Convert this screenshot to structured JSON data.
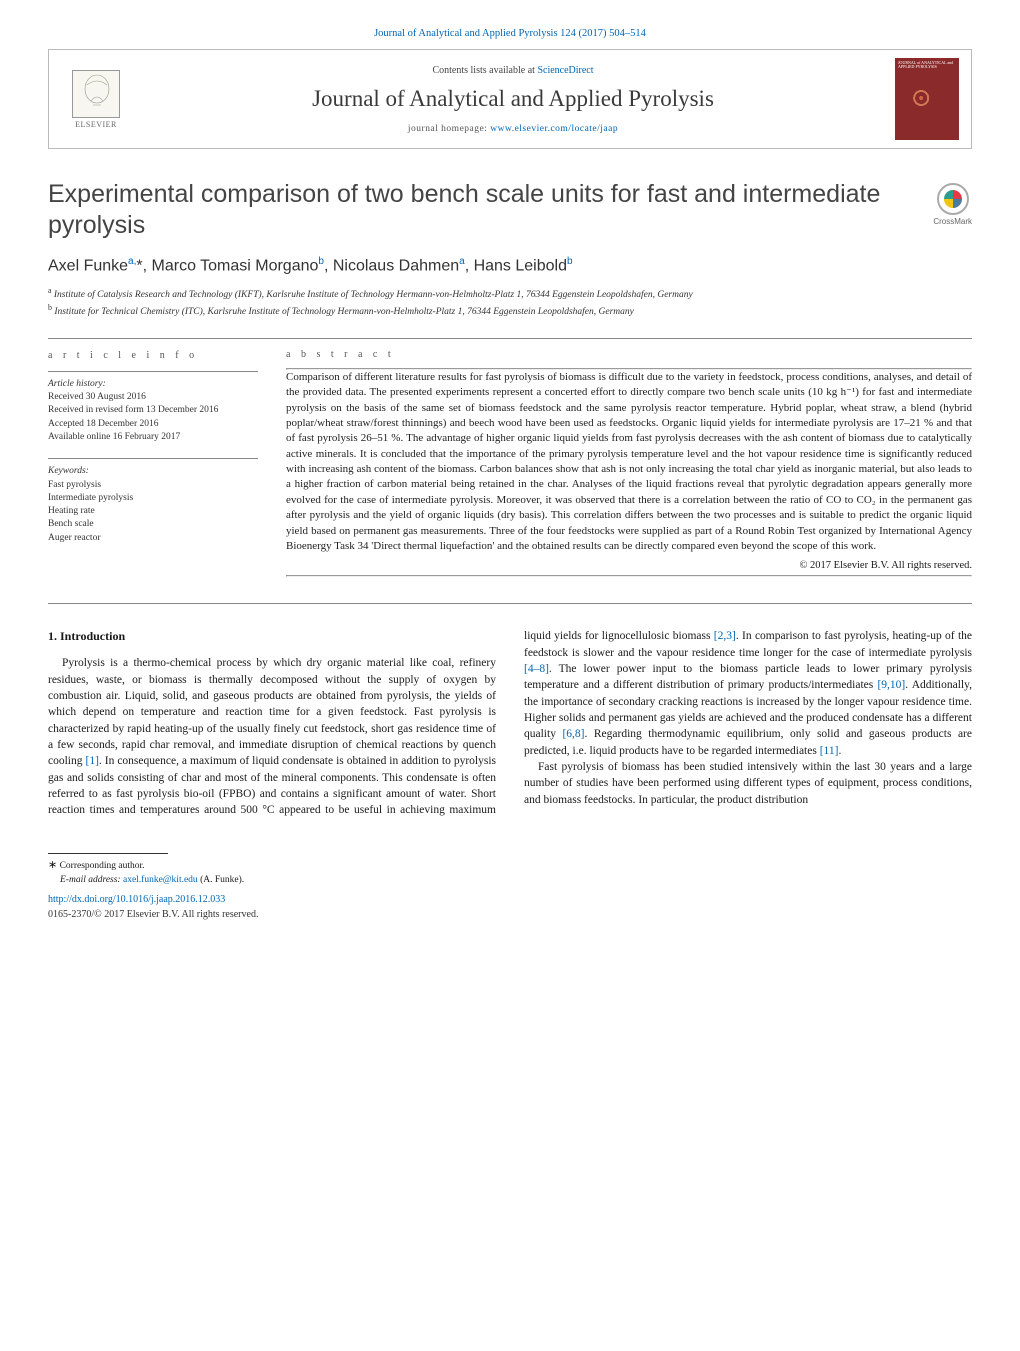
{
  "top_citation": "Journal of Analytical and Applied Pyrolysis 124 (2017) 504–514",
  "header": {
    "publisher_name": "ELSEVIER",
    "contents_prefix": "Contents lists available at ",
    "contents_link": "ScienceDirect",
    "journal_name": "Journal of Analytical and Applied Pyrolysis",
    "homepage_prefix": "journal homepage: ",
    "homepage_url": "www.elsevier.com/locate/jaap",
    "cover_label": "JOURNAL of ANALYTICAL and APPLIED PYROLYSIS"
  },
  "article": {
    "title": "Experimental comparison of two bench scale units for fast and intermediate pyrolysis",
    "crossmark_label": "CrossMark",
    "authors_html": "Axel Funke<sup>a,</sup>*, Marco Tomasi Morgano<sup>b</sup>, Nicolaus Dahmen<sup>a</sup>, Hans Leibold<sup>b</sup>",
    "affiliations": {
      "a": "Institute of Catalysis Research and Technology (IKFT), Karlsruhe Institute of Technology Hermann-von-Helmholtz-Platz 1, 76344 Eggenstein Leopoldshafen, Germany",
      "b": "Institute for Technical Chemistry (ITC), Karlsruhe Institute of Technology Hermann-von-Helmholtz-Platz 1, 76344 Eggenstein Leopoldshafen, Germany"
    }
  },
  "info": {
    "section_label": "a r t i c l e   i n f o",
    "history_label": "Article history:",
    "received": "Received 30 August 2016",
    "revised": "Received in revised form 13 December 2016",
    "accepted": "Accepted 18 December 2016",
    "online": "Available online 16 February 2017",
    "keywords_label": "Keywords:",
    "keywords": [
      "Fast pyrolysis",
      "Intermediate pyrolysis",
      "Heating rate",
      "Bench scale",
      "Auger reactor"
    ]
  },
  "abstract": {
    "section_label": "a b s t r a c t",
    "text": "Comparison of different literature results for fast pyrolysis of biomass is difficult due to the variety in feedstock, process conditions, analyses, and detail of the provided data. The presented experiments represent a concerted effort to directly compare two bench scale units (10 kg h⁻¹) for fast and intermediate pyrolysis on the basis of the same set of biomass feedstock and the same pyrolysis reactor temperature. Hybrid poplar, wheat straw, a blend (hybrid poplar/wheat straw/forest thinnings) and beech wood have been used as feedstocks. Organic liquid yields for intermediate pyrolysis are 17–21 % and that of fast pyrolysis 26–51 %. The advantage of higher organic liquid yields from fast pyrolysis decreases with the ash content of biomass due to catalytically active minerals. It is concluded that the importance of the primary pyrolysis temperature level and the hot vapour residence time is significantly reduced with increasing ash content of the biomass. Carbon balances show that ash is not only increasing the total char yield as inorganic material, but also leads to a higher fraction of carbon material being retained in the char. Analyses of the liquid fractions reveal that pyrolytic degradation appears generally more evolved for the case of intermediate pyrolysis. Moreover, it was observed that there is a correlation between the ratio of CO to CO₂ in the permanent gas after pyrolysis and the yield of organic liquids (dry basis). This correlation differs between the two processes and is suitable to predict the organic liquid yield based on permanent gas measurements. Three of the four feedstocks were supplied as part of a Round Robin Test organized by International Agency Bioenergy Task 34 'Direct thermal liquefaction' and the obtained results can be directly compared even beyond the scope of this work.",
    "copyright": "© 2017 Elsevier B.V. All rights reserved."
  },
  "body": {
    "heading": "1.  Introduction",
    "p1": "Pyrolysis is a thermo-chemical process by which dry organic material like coal, refinery residues, waste, or biomass is thermally decomposed without the supply of oxygen by combustion air. Liquid, solid, and gaseous products are obtained from pyrolysis, the yields of which depend on temperature and reaction time for a given feedstock. Fast pyrolysis is characterized by rapid heating-up of the usually finely cut feedstock, short gas residence time of a few seconds, rapid char removal, and immediate disruption of chemical reactions by quench cooling ",
    "r1": "[1]",
    "p1b": ". In consequence, a maximum of liquid condensate is obtained in addition to pyrolysis gas and solids consisting of char and most of the mineral components. This condensate is often referred to as fast pyrolysis bio-oil (FPBO)",
    "p2a": "and contains a significant amount of water. Short reaction times and temperatures around 500 °C appeared to be useful in achieving maximum liquid yields for lignocellulosic biomass ",
    "r2": "[2,3]",
    "p2b": ". In comparison to fast pyrolysis, heating-up of the feedstock is slower and the vapour residence time longer for the case of intermediate pyrolysis ",
    "r3": "[4–8]",
    "p2c": ". The lower power input to the biomass particle leads to lower primary pyrolysis temperature and a different distribution of primary products/intermediates ",
    "r4": "[9,10]",
    "p2d": ". Additionally, the importance of secondary cracking reactions is increased by the longer vapour residence time. Higher solids and permanent gas yields are achieved and the produced condensate has a different quality ",
    "r5": "[6,8]",
    "p2e": ". Regarding thermodynamic equilibrium, only solid and gaseous products are predicted, i.e. liquid products have to be regarded intermediates ",
    "r6": "[11]",
    "p2f": ".",
    "p3": "Fast pyrolysis of biomass has been studied intensively within the last 30 years and a large number of studies have been performed using different types of equipment, process conditions, and biomass feedstocks. In particular, the product distribution"
  },
  "footer": {
    "corresponding": "Corresponding author.",
    "email_label": "E-mail address: ",
    "email": "axel.funke@kit.edu",
    "email_name": " (A. Funke).",
    "doi": "http://dx.doi.org/10.1016/j.jaap.2016.12.033",
    "issn": "0165-2370/© 2017 Elsevier B.V. All rights reserved."
  },
  "colors": {
    "link": "#0066b3",
    "text": "#1a1a1a",
    "muted": "#555555",
    "rule": "#888888",
    "cover_bg": "#8b2a2a"
  },
  "typography": {
    "body_pt": 11.5,
    "abstract_pt": 11,
    "title_pt": 25,
    "authors_pt": 16,
    "small_pt": 9.5
  }
}
